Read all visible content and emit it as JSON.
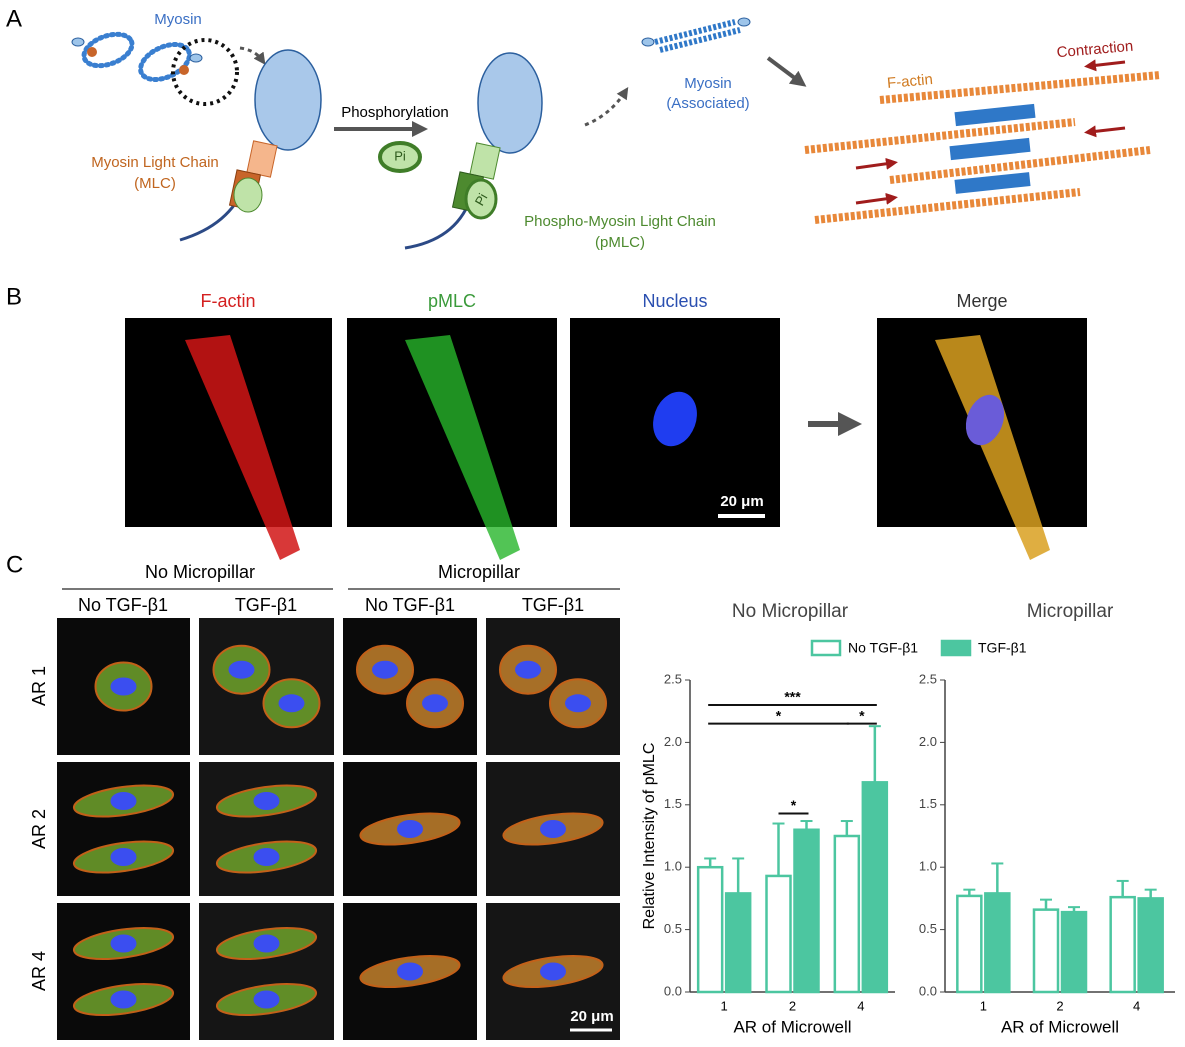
{
  "panel_a": {
    "label": "A",
    "myosin": "Myosin",
    "mlc": [
      "Myosin Light Chain",
      "(MLC)"
    ],
    "phosphorylation": "Phosphorylation",
    "pi_labels": [
      "Pi",
      "Pi"
    ],
    "pmlc": [
      "Phospho-Myosin Light Chain",
      "(pMLC)"
    ],
    "associated": [
      "Myosin",
      "(Associated)"
    ],
    "contraction": "Contraction",
    "factin": "F-actin"
  },
  "panel_b": {
    "label": "B",
    "channels": [
      "F-actin",
      "pMLC",
      "Nucleus",
      "Merge"
    ],
    "scale_bar": "20 μm"
  },
  "panel_c": {
    "label": "C",
    "groups": [
      "No Micropillar",
      "Micropillar"
    ],
    "conditions": [
      "No TGF-β1",
      "TGF-β1",
      "No TGF-β1",
      "TGF-β1"
    ],
    "rows": [
      "AR 1",
      "AR 2",
      "AR 4"
    ],
    "scale_bar": "20 μm"
  },
  "chart_data": [
    {
      "type": "bar",
      "title": "No Micropillar",
      "x_label": "AR of Microwell",
      "y_label": "Relative Intensity of pMLC",
      "categories": [
        "1",
        "2",
        "4"
      ],
      "series": [
        {
          "name": "No TGF-β1",
          "color": "#4cc6a0",
          "filled": false,
          "values": [
            1.0,
            0.93,
            1.25
          ],
          "errors": [
            0.07,
            0.42,
            0.12
          ]
        },
        {
          "name": "TGF-β1",
          "color": "#4cc6a0",
          "filled": true,
          "values": [
            0.79,
            1.3,
            1.68
          ],
          "errors": [
            0.28,
            0.07,
            0.45
          ]
        }
      ],
      "ylim": [
        0,
        2.5
      ],
      "yticks": [
        {
          "value": 0,
          "label": "0.0"
        },
        0.5,
        {
          "value": 1,
          "label": "1.0"
        },
        1.5,
        {
          "value": 2,
          "label": "2.0"
        },
        2.5
      ],
      "legend": "top",
      "annotations": [
        "***",
        "*",
        "*",
        "*"
      ]
    },
    {
      "type": "bar",
      "title": "Micropillar",
      "x_label": "AR of Microwell",
      "categories": [
        "1",
        "2",
        "4"
      ],
      "series": [
        {
          "color": "#4cc6a0",
          "filled": false,
          "values": [
            0.77,
            0.66,
            0.76
          ],
          "errors": [
            0.05,
            0.08,
            0.13
          ]
        },
        {
          "color": "#4cc6a0",
          "filled": true,
          "values": [
            0.79,
            0.64,
            0.75
          ],
          "errors": [
            0.24,
            0.04,
            0.07
          ]
        }
      ],
      "ylim": [
        0,
        2.5
      ],
      "yticks": [
        {
          "value": 0,
          "label": "0.0"
        },
        0.5,
        {
          "value": 1,
          "label": "1.0"
        },
        1.5,
        {
          "value": 2,
          "label": "2.0"
        },
        2.5
      ]
    }
  ]
}
